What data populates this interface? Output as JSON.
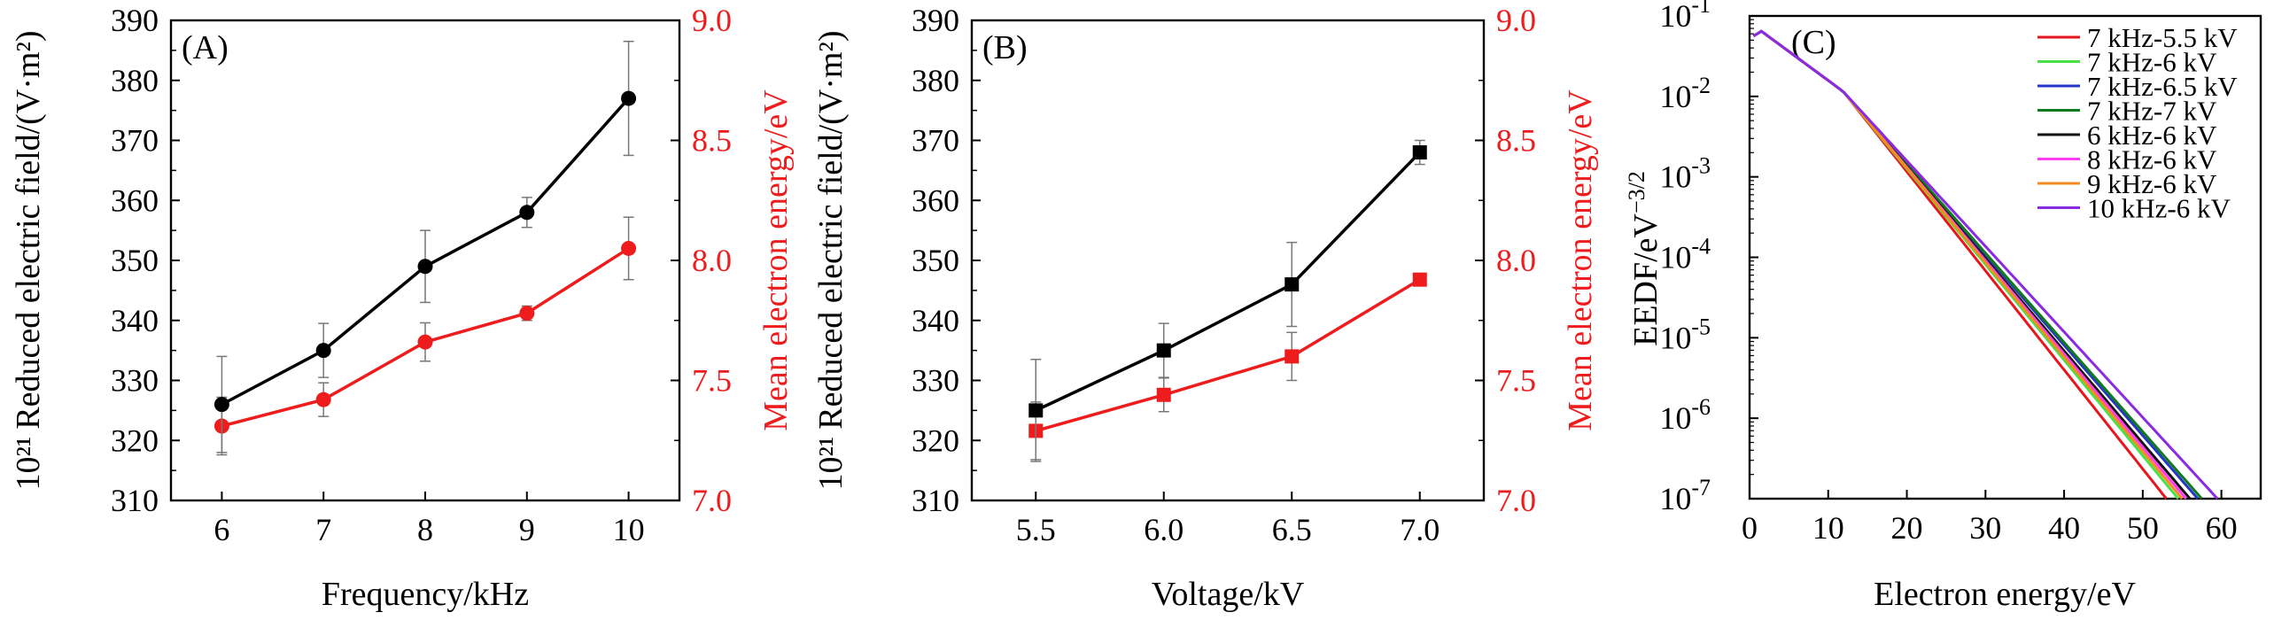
{
  "chart_data": [
    {
      "type": "line",
      "panel_label": "(A)",
      "xlabel": "Frequency/kHz",
      "ylabel": "Reduced electric field/(V·m²)",
      "ylabel_prefix": "10²¹",
      "y2label": "Mean electron energy/eV",
      "x": [
        6,
        7,
        8,
        9,
        10
      ],
      "xticks": [
        "6",
        "7",
        "8",
        "9",
        "10"
      ],
      "xlim": [
        5.5,
        10.5
      ],
      "ylim": [
        310,
        390
      ],
      "yticks": [
        "310",
        "320",
        "330",
        "340",
        "350",
        "360",
        "370",
        "380",
        "390"
      ],
      "y2lim": [
        7.0,
        9.0
      ],
      "y2ticks": [
        "7.0",
        "7.5",
        "8.0",
        "8.5",
        "9.0"
      ],
      "colors": {
        "left": "#000000",
        "right": "#ee1c1c"
      },
      "series": [
        {
          "name": "Reduced electric field",
          "axis": "left",
          "marker": "circle",
          "values": [
            326,
            335,
            349,
            358,
            377
          ],
          "errors": [
            8,
            4.5,
            6,
            2.5,
            9.5
          ]
        },
        {
          "name": "Mean electron energy",
          "axis": "right",
          "marker": "circle",
          "values": [
            7.31,
            7.42,
            7.66,
            7.78,
            8.05
          ],
          "errors": [
            0.12,
            0.07,
            0.08,
            0.03,
            0.13
          ]
        }
      ]
    },
    {
      "type": "line",
      "panel_label": "(B)",
      "xlabel": "Voltage/kV",
      "ylabel": "Reduced electric field/(V·m²)",
      "ylabel_prefix": "10²¹",
      "y2label": "Mean electron energy/eV",
      "x": [
        5.5,
        6.0,
        6.5,
        7.0
      ],
      "xticks": [
        "5.5",
        "6.0",
        "6.5",
        "7.0"
      ],
      "xlim": [
        5.25,
        7.25
      ],
      "ylim": [
        310,
        390
      ],
      "yticks": [
        "310",
        "320",
        "330",
        "340",
        "350",
        "360",
        "370",
        "380",
        "390"
      ],
      "y2lim": [
        7.0,
        9.0
      ],
      "y2ticks": [
        "7.0",
        "7.5",
        "8.0",
        "8.5",
        "9.0"
      ],
      "colors": {
        "left": "#000000",
        "right": "#ee1c1c"
      },
      "series": [
        {
          "name": "Reduced electric field",
          "axis": "left",
          "marker": "square",
          "values": [
            325,
            335,
            346,
            368
          ],
          "errors": [
            8.5,
            4.5,
            7,
            2
          ]
        },
        {
          "name": "Mean electron energy",
          "axis": "right",
          "marker": "square",
          "values": [
            7.29,
            7.44,
            7.6,
            7.92
          ],
          "errors": [
            0.12,
            0.07,
            0.1,
            0.02
          ]
        }
      ]
    },
    {
      "type": "line",
      "panel_label": "(C)",
      "xlabel": "Electron energy/eV",
      "ylabel": "EEDF/eV",
      "ylabel_exponent": "−3/2",
      "yscale": "log",
      "xlim": [
        0,
        65
      ],
      "xticks": [
        "0",
        "10",
        "20",
        "30",
        "40",
        "50",
        "60"
      ],
      "ylim_exp": [
        -7,
        -1
      ],
      "yticks_exp": [
        "-7",
        "-6",
        "-5",
        "-4",
        "-3",
        "-2",
        "-1"
      ],
      "legend_position": "top-right",
      "series": [
        {
          "name": "7 kHz-5.5 kV",
          "color": "#e8161c",
          "cutoff": 53.0
        },
        {
          "name": "7 kHz-6 kV",
          "color": "#4ae04a",
          "cutoff": 54.5
        },
        {
          "name": "7 kHz-6.5 kV",
          "color": "#2636c8",
          "cutoff": 57.0
        },
        {
          "name": "7 kHz-7 kV",
          "color": "#117a1c",
          "cutoff": 57.5
        },
        {
          "name": "6 kHz-6 kV",
          "color": "#111111",
          "cutoff": 56.0
        },
        {
          "name": "8 kHz-6 kV",
          "color": "#ff3cf0",
          "cutoff": 55.5
        },
        {
          "name": "9 kHz-6 kV",
          "color": "#f28c1e",
          "cutoff": 55.0
        },
        {
          "name": "10 kHz-6 kV",
          "color": "#8a2be2",
          "cutoff": 59.5
        }
      ]
    }
  ]
}
